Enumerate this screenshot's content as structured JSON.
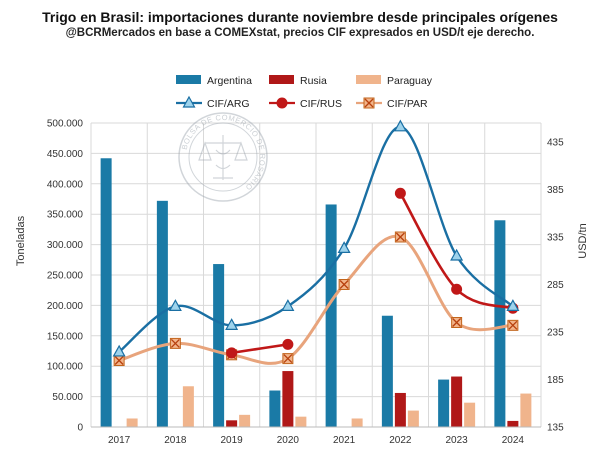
{
  "header": {
    "title": "Trigo en Brasil: importaciones durante noviembre desde principales orígenes",
    "subtitle": "@BCRMercados en base a COMEXstat, precios CIF expresados en USD/t eje derecho."
  },
  "watermark": {
    "text": "BOLSA DE COMERCIO DE ROSARIO"
  },
  "colors": {
    "argentina": "#1a7aa6",
    "rusia": "#b01818",
    "paraguay": "#f0b48c",
    "cif_arg": "#1a6fa3",
    "cif_rus": "#c01818",
    "cif_par": "#e8a47c"
  },
  "chart_data": {
    "type": "bar",
    "categories": [
      "2017",
      "2018",
      "2019",
      "2020",
      "2021",
      "2022",
      "2023",
      "2024"
    ],
    "series": [
      {
        "name": "Argentina",
        "type": "bar",
        "axis": "left",
        "values": [
          442000,
          372000,
          268000,
          60000,
          366000,
          183000,
          78000,
          340000
        ]
      },
      {
        "name": "Rusia",
        "type": "bar",
        "axis": "left",
        "values": [
          null,
          null,
          11000,
          92000,
          null,
          56000,
          83000,
          10000
        ]
      },
      {
        "name": "Paraguay",
        "type": "bar",
        "axis": "left",
        "values": [
          14000,
          67000,
          20000,
          17000,
          14000,
          27000,
          40000,
          55000
        ]
      },
      {
        "name": "CIF/ARG",
        "type": "line",
        "axis": "right",
        "marker": "triangle",
        "values": [
          214,
          262,
          242,
          262,
          323,
          451,
          315,
          262
        ]
      },
      {
        "name": "CIF/RUS",
        "type": "line",
        "axis": "right",
        "marker": "circle",
        "values": [
          null,
          null,
          213,
          222,
          null,
          381,
          280,
          260
        ]
      },
      {
        "name": "CIF/PAR",
        "type": "line",
        "axis": "right",
        "marker": "square-x",
        "values": [
          205,
          223,
          211,
          207,
          285,
          335,
          245,
          242
        ]
      }
    ],
    "ylabel": "Toneladas",
    "y2label": "USD/tn",
    "ylim": [
      0,
      500000
    ],
    "y2lim": [
      135,
      455
    ],
    "yticks": [
      "0",
      "50.000",
      "100.000",
      "150.000",
      "200.000",
      "250.000",
      "300.000",
      "350.000",
      "400.000",
      "450.000",
      "500.000"
    ],
    "y2ticks": [
      "135",
      "185",
      "235",
      "285",
      "335",
      "385",
      "435"
    ],
    "grid": true,
    "legend": "top"
  }
}
